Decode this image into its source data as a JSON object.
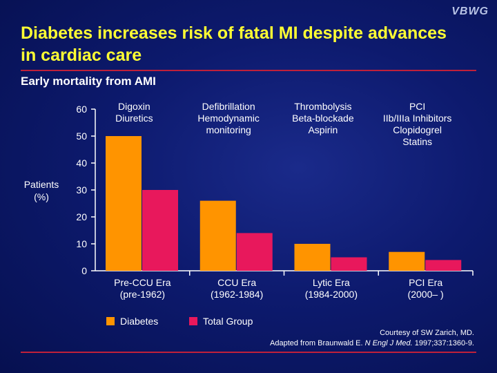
{
  "logo": "VBWG",
  "title": "Diabetes increases risk of fatal MI despite advances in cardiac care",
  "subtitle": "Early mortality from AMI",
  "colors": {
    "diabetes": "#ff9400",
    "total": "#e8185c",
    "axis": "#ffffff",
    "title": "#ffff33",
    "rule": "#c0203a"
  },
  "eras": [
    {
      "therapy": "Digoxin\nDiuretics"
    },
    {
      "therapy": "Defibrillation\nHemodynamic\nmonitoring"
    },
    {
      "therapy": "Thrombolysis\nBeta-blockade\nAspirin"
    },
    {
      "therapy": "PCI\nIIb/IIIa Inhibitors\nClopidogrel\nStatins"
    }
  ],
  "legend": {
    "diabetes": "Diabetes",
    "total": "Total Group"
  },
  "credit": {
    "line1": "Courtesy of SW Zarich, MD.",
    "line2_prefix": "Adapted from Braunwald E. ",
    "journal": "N Engl J Med.",
    "line2_suffix": " 1997;337:1360-9."
  },
  "chart_data": {
    "type": "bar",
    "categories": [
      "Pre-CCU Era\n(pre-1962)",
      "CCU Era\n(1962-1984)",
      "Lytic Era\n(1984-2000)",
      "PCI Era\n(2000– )"
    ],
    "series": [
      {
        "name": "Diabetes",
        "values": [
          50,
          26,
          10,
          7
        ]
      },
      {
        "name": "Total Group",
        "values": [
          30,
          14,
          5,
          4
        ]
      }
    ],
    "ylabel": "Patients\n(%)",
    "xlabel": "",
    "ylim": [
      0,
      60
    ],
    "yticks": [
      0,
      10,
      20,
      30,
      40,
      50,
      60
    ],
    "grid": false,
    "legend_position": "bottom-left"
  }
}
